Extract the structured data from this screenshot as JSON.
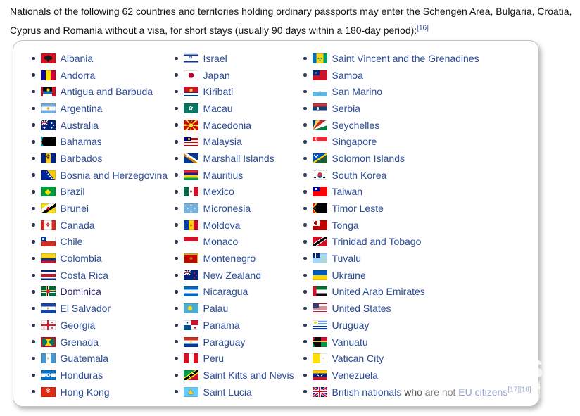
{
  "intro": {
    "line1": "Nationals of the following 62 countries and territories holding ordinary passports may enter the Schengen Area, Bulgaria, Croatia,",
    "line2": "Cyprus and Romania without a visa, for short stays (usually 90 days within a 180-day period):",
    "ref": "[16]"
  },
  "colors": {
    "link": "#2b4c98",
    "visited_link": "#2b2171",
    "text": "#141414",
    "box_border": "#c2c2c2",
    "bullet": "#2a3756"
  },
  "watermark": {
    "s": "S",
    "g": "G",
    "four": "4"
  },
  "box": {
    "columns": [
      [
        {
          "label": "Albania",
          "flag": "radial-gradient(ellipse 6px 3px at 50% 46%,#191919 98%,transparent),radial-gradient(ellipse 2px 5px at 50% 52%,#191919 98%,transparent),linear-gradient(#d8121f,#d8121f)"
        },
        {
          "label": "Andorra",
          "flag": "linear-gradient(90deg,#10069f 0 33%,#fedd00 33% 67%,#d50032 67%)"
        },
        {
          "label": "Antigua and Barbuda",
          "flag": "radial-gradient(circle 2.2px at 50% 4.5px,#fcd116 98%,transparent),linear-gradient(180deg,#000 0 45%,#0072c6 45% 70%,#fff 70%) 50% 0/62% 100% no-repeat,linear-gradient(#ce1126,#ce1126)"
        },
        {
          "label": "Argentina",
          "flag": "radial-gradient(circle 1.8px at 50% 50%,#f6b40e 98%,transparent),linear-gradient(180deg,#74acdf 0 33%,#fff 33% 67%,#74acdf 67%)"
        },
        {
          "label": "Australia",
          "flag": "radial-gradient(circle 1px at 15.5px 4px,#fff 97%,transparent),radial-gradient(circle 1px at 18px 7px,#fff 97%,transparent),radial-gradient(circle 1px at 15.5px 10.5px,#fff 97%,transparent),radial-gradient(circle 1.4px at 5px 10.5px,#fff 97%,transparent),linear-gradient(#c8102e,#c8102e) 0 3.2px/10px 0.8px no-repeat,linear-gradient(#c8102e,#c8102e) 4.6px 0/0.8px 7px no-repeat,linear-gradient(#fff,#fff) 0 2.7px/10px 1.8px no-repeat,linear-gradient(#fff,#fff) 4.1px 0/1.8px 7px no-repeat,linear-gradient(34deg,transparent 44%,#fff 44% 56%,transparent 56%) 0 0/10px 7px no-repeat,linear-gradient(-34deg,transparent 44%,#fff 44% 56%,transparent 56%) 0 0/10px 7px no-repeat,linear-gradient(#00247d,#00247d)"
        },
        {
          "label": "Bahamas",
          "flag": "conic-gradient(from 30deg at 0 50%,#000 0 120deg,transparent 120deg),linear-gradient(180deg,#00abc9 0 33%,#fae042 33% 67%,#00abc9 67%)"
        },
        {
          "label": "Barbados",
          "flag": "linear-gradient(90deg,#00267f 0 33%,#ffc726 33% 67%,#00267f 67%)",
          "ch": {
            "t": "♆",
            "c": "#000",
            "s": 9
          }
        },
        {
          "label": "Bosnia and Herzegovina",
          "flag": "radial-gradient(circle 1px at 8px 2.5px,#fff 96%,transparent),radial-gradient(circle 1px at 10.5px 5.5px,#fff 96%,transparent),radial-gradient(circle 1px at 13px 8.5px,#fff 96%,transparent),radial-gradient(circle 1px at 15.5px 11.5px,#fff 96%,transparent),conic-gradient(from 90deg at 9px 0,#fecb00 0 52deg,transparent 52deg),linear-gradient(#002395,#002395)"
        },
        {
          "label": "Brazil",
          "flag": "linear-gradient(#009b3a,#009b3a)",
          "ch": {
            "t": "◆",
            "c": "#fedf00",
            "s": 11
          }
        },
        {
          "label": "Brunei",
          "flag": "radial-gradient(circle 2px at 10.5px 7px,#cf1126 98%,transparent),linear-gradient(to bottom right,transparent 30%,#fff 30% 50%,#000 50% 66%,transparent 66%),linear-gradient(#f7e017,#f7e017)"
        },
        {
          "label": "Canada",
          "flag": "linear-gradient(90deg,#d52b1e 0 25%,transparent 25% 75%,#d52b1e 75%),linear-gradient(#fff,#fff)",
          "ch": {
            "t": "❖",
            "c": "#d52b1e",
            "s": 8
          }
        },
        {
          "label": "Chile",
          "flag": "radial-gradient(circle 1.6px at 3.5px 3.5px,#fff 98%,transparent),linear-gradient(#0039a6,#0039a6) 0 0/7px 7px no-repeat,linear-gradient(180deg,#fff 0 50%,#d52b1e 50%)"
        },
        {
          "label": "Colombia",
          "flag": "linear-gradient(180deg,#fcd116 0 50%,#003893 50% 75%,#ce1126 75%)"
        },
        {
          "label": "Costa Rica",
          "flag": "linear-gradient(180deg,#002b7f 0 18%,#fff 18% 36%,#ce1126 36% 64%,#fff 64% 82%,#002b7f 82%)"
        },
        {
          "label": "Dominica",
          "visited": true,
          "flag": "radial-gradient(circle 2.6px at 50% 50%,#d41c30 98%,transparent),linear-gradient(#fcd116,#fcd116) 0 4.6px/21px 1.3px no-repeat,linear-gradient(#0a0a0a,#0a0a0a) 0 5.9px/21px 1.3px no-repeat,linear-gradient(#fff,#fff) 0 7.2px/21px 1.3px no-repeat,linear-gradient(#fcd116,#fcd116) 8px 0/1.3px 14px no-repeat,linear-gradient(#0a0a0a,#0a0a0a) 9.3px 0/1.3px 14px no-repeat,linear-gradient(#fff,#fff) 10.6px 0/1.3px 14px no-repeat,linear-gradient(#006b3f,#006b3f)"
        },
        {
          "label": "El Salvador",
          "flag": "radial-gradient(circle 1.7px at 50% 50%,#e8a33d 98%,transparent),linear-gradient(180deg,#0f47af 0 33%,#fff 33% 67%,#0f47af 67%)"
        },
        {
          "label": "Georgia",
          "flag": "linear-gradient(#e8112d,#e8112d) 0 5.9px/21px 2.2px no-repeat,linear-gradient(#e8112d,#e8112d) 9.4px 0/2.2px 14px no-repeat,radial-gradient(circle 1px at 4.5px 3px,#e8112d 96%,transparent),radial-gradient(circle 1px at 16px 3px,#e8112d 96%,transparent),radial-gradient(circle 1px at 4.5px 11px,#e8112d 96%,transparent),radial-gradient(circle 1px at 16px 11px,#e8112d 96%,transparent),linear-gradient(#fff,#fff)"
        },
        {
          "label": "Grenada",
          "flag": "radial-gradient(circle 1.7px at 50% 50%,#fcd116 98%,transparent),conic-gradient(from -45deg at 50% 50%,#fcd116 0 90deg,#007a5e 90deg 180deg,#fcd116 180deg 270deg,#007a5e 270deg) 2px 2px/17px 10px no-repeat,linear-gradient(#ce1126,#ce1126)"
        },
        {
          "label": "Guatemala",
          "flag": "radial-gradient(circle 1.6px at 50% 50%,#b5c9ad 98%,transparent),linear-gradient(90deg,#4997d0 0 33%,#fff 33% 67%,#4997d0 67%)"
        },
        {
          "label": "Honduras",
          "flag": "radial-gradient(circle 0.9px at 10.5px 7px,#0073cf 95%,transparent),radial-gradient(circle 0.9px at 7.5px 5.5px,#0073cf 95%,transparent),radial-gradient(circle 0.9px at 13.5px 5.5px,#0073cf 95%,transparent),radial-gradient(circle 0.9px at 7.5px 8.5px,#0073cf 95%,transparent),radial-gradient(circle 0.9px at 13.5px 8.5px,#0073cf 95%,transparent),linear-gradient(180deg,#0073cf 0 33%,#fff 33% 67%,#0073cf 67%)"
        },
        {
          "label": "Hong Kong",
          "flag": "linear-gradient(#de2910,#de2910)",
          "ch": {
            "t": "✻",
            "c": "#fff",
            "s": 9
          }
        }
      ],
      [
        {
          "label": "Israel",
          "flag": "linear-gradient(180deg,transparent 0 12%,#0038b8 12% 23%,transparent 23% 77%,#0038b8 77% 88%,transparent 88%),linear-gradient(#fff,#fff)",
          "ch": {
            "t": "✡",
            "c": "#0038b8",
            "s": 7
          }
        },
        {
          "label": "Japan",
          "flag": "radial-gradient(circle 3.8px at 50% 50%,#bc002d 98%,transparent),linear-gradient(#fff,#fff)"
        },
        {
          "label": "Kiribati",
          "flag": "radial-gradient(circle 2.2px at 50% 5px,#fcd116 98%,transparent),linear-gradient(#fff,#fff) 0 8.6px/21px 1.1px no-repeat,linear-gradient(#fff,#fff) 0 11px/21px 1.1px no-repeat,linear-gradient(180deg,#ce1126 0 57%,#003f87 57%)"
        },
        {
          "label": "Macau",
          "flag": "linear-gradient(#067662,#067662)",
          "ch": {
            "t": "✿",
            "c": "#fff",
            "s": 8
          }
        },
        {
          "label": "Macedonia",
          "flag": "radial-gradient(circle 2.6px at 50% 50%,#f8e92e 98%,transparent),repeating-conic-gradient(from 10deg at 50% 50%,#d20000 0 29deg,#f8e92e 29deg 45deg)"
        },
        {
          "label": "Malaysia",
          "flag": "radial-gradient(circle 1.6px at 7.5px 3.5px,#ffcc00 98%,transparent),linear-gradient(#010066,#010066) 0 0/10.5px 7px no-repeat,repeating-linear-gradient(180deg,#cc0001 0 1px,#fff 1px 2px)"
        },
        {
          "label": "Marshall Islands",
          "flag": "radial-gradient(circle 1.8px at 5px 3.5px,#fff 98%,transparent),linear-gradient(to top right,transparent 38%,#dd7500 38% 50%,#fff 50% 62%,transparent 62%),linear-gradient(#003893,#003893)"
        },
        {
          "label": "Mauritius",
          "flag": "linear-gradient(180deg,#ea2839 0 25%,#1a206d 25% 50%,#ffd500 50% 75%,#00a551 75%)"
        },
        {
          "label": "Mexico",
          "flag": "radial-gradient(circle 1.7px at 50% 50%,#8c6239 98%,transparent),linear-gradient(90deg,#006847 0 33%,#fff 33% 67%,#ce1126 67%)"
        },
        {
          "label": "Micronesia",
          "flag": "radial-gradient(circle 1px at 10.5px 2.5px,#fff 96%,transparent),radial-gradient(circle 1px at 10.5px 11.5px,#fff 96%,transparent),radial-gradient(circle 1px at 5.5px 7px,#fff 96%,transparent),radial-gradient(circle 1px at 15.5px 7px,#fff 96%,transparent),linear-gradient(#75b2dd,#75b2dd)"
        },
        {
          "label": "Moldova",
          "flag": "radial-gradient(circle 1.7px at 50% 50%,#a77b3b 98%,transparent),linear-gradient(90deg,#0046ae 0 33%,#ffd200 33% 67%,#cc092f 67%)"
        },
        {
          "label": "Monaco",
          "flag": "linear-gradient(180deg,#ce1126 0 50%,#fff 50%)"
        },
        {
          "label": "Montenegro",
          "flag": "radial-gradient(circle 2px at 50% 50%,#b8860b 98%,transparent),linear-gradient(#c40308,#c40308) 1.5px 1.5px/18px 11px no-repeat,linear-gradient(#d3ae3b,#d3ae3b)"
        },
        {
          "label": "New Zealand",
          "flag": "radial-gradient(circle 1.1px at 15px 4px,#cc142b 97%,transparent),radial-gradient(circle 1.1px at 18px 7px,#cc142b 97%,transparent),radial-gradient(circle 1.1px at 15px 10.5px,#cc142b 97%,transparent),linear-gradient(#c8102e,#c8102e) 0 3.2px/10px 0.8px no-repeat,linear-gradient(#c8102e,#c8102e) 4.6px 0/0.8px 7px no-repeat,linear-gradient(#fff,#fff) 0 2.7px/10px 1.8px no-repeat,linear-gradient(#fff,#fff) 4.1px 0/1.8px 7px no-repeat,linear-gradient(34deg,transparent 44%,#fff 44% 56%,transparent 56%) 0 0/10px 7px no-repeat,linear-gradient(-34deg,transparent 44%,#fff 44% 56%,transparent 56%) 0 0/10px 7px no-repeat,linear-gradient(#00247d,#00247d)"
        },
        {
          "label": "Nicaragua",
          "flag": "radial-gradient(circle 1.5px at 50% 50%,#ffd700 70%,transparent 71%),linear-gradient(180deg,#0067c6 0 33%,#fff 33% 67%,#0067c6 67%)"
        },
        {
          "label": "Palau",
          "flag": "radial-gradient(circle 3.1px at 9px 7px,#ffde00 98%,transparent),linear-gradient(#4aadd6,#4aadd6)"
        },
        {
          "label": "Panama",
          "flag": "radial-gradient(circle 1.3px at 5px 3.5px,#005293 97%,transparent),radial-gradient(circle 1.3px at 16px 10.5px,#d21034 97%,transparent),conic-gradient(at 50% 50%,#d21034 0 90deg,#fff 90deg 180deg,#005293 180deg 270deg,#fff 270deg)"
        },
        {
          "label": "Paraguay",
          "flag": "radial-gradient(circle 1.4px at 50% 50%,#ffd700 98%,transparent),linear-gradient(180deg,#d52b1e 0 33%,#fff 33% 67%,#0038a8 67%)"
        },
        {
          "label": "Peru",
          "flag": "linear-gradient(90deg,#d91023 0 33%,#fff 33% 67%,#d91023 67%)"
        },
        {
          "label": "Saint Kitts and Nevis",
          "flag": "radial-gradient(circle 1.2px at 8px 9px,#fff 97%,transparent),radial-gradient(circle 1.2px at 13px 5px,#fff 97%,transparent),linear-gradient(to bottom right,#009e49 0 38%,#ffe900 38% 44%,#000 44% 58%,#ffe900 58% 64%,#ce1126 64%)"
        },
        {
          "label": "Saint Lucia",
          "flag": "linear-gradient(#66ccff,#66ccff)",
          "ch": {
            "t": "▲",
            "c": "#fcd116",
            "s": 10,
            "sh": "0 0 1px #000"
          }
        }
      ],
      [
        {
          "label": "Saint Vincent and the Grenadines",
          "flag": "radial-gradient(circle 1.1px at 8.5px 7px,#009e60 97%,transparent),radial-gradient(circle 1.1px at 12.5px 7px,#009e60 97%,transparent),radial-gradient(circle 1.1px at 10.5px 9.8px,#009e60 97%,transparent),linear-gradient(90deg,#0072c6 0 27%,#fcd116 27% 73%,#009e60 73%)"
        },
        {
          "label": "Samoa",
          "flag": "radial-gradient(circle 1px at 5px 3.5px,#fff 96%,transparent),linear-gradient(#002b7f,#002b7f) 0 0/10px 7px no-repeat,linear-gradient(#ce1126,#ce1126)"
        },
        {
          "label": "San Marino",
          "flag": "radial-gradient(circle 1.8px at 50% 50%,#e7a94e 55%,#65c8d0 56%,transparent 60%),linear-gradient(180deg,#fff 0 50%,#5eb6e4 50%)"
        },
        {
          "label": "Serbia",
          "flag": "radial-gradient(ellipse 1.6px 2.2px at 7.5px 7px,#f0f0f0 96%,transparent),linear-gradient(180deg,#c6363c 0 33%,#0c4076 33% 67%,#fff 67%)"
        },
        {
          "label": "Seychelles",
          "flag": "conic-gradient(from 0deg at 0 100%,#003f87 0 18deg,#fcd856 18deg 36deg,#d62828 36deg 54deg,#fff 54deg 72deg,#007a3d 72deg 90deg)"
        },
        {
          "label": "Singapore",
          "flag": "radial-gradient(circle 1.7px at 6.8px 3.5px,#ed2939 98%,transparent),radial-gradient(circle 2.1px at 5.8px 3.5px,#fff 98%,transparent),linear-gradient(180deg,#ed2939 0 50%,#fff 50%)"
        },
        {
          "label": "Solomon Islands",
          "flag": "radial-gradient(circle 1px at 3px 2.5px,#fff 96%,transparent),radial-gradient(circle 1px at 7px 2.5px,#fff 96%,transparent),radial-gradient(circle 1px at 5px 4.8px,#fff 96%,transparent),linear-gradient(to bottom right,#0051ba 0 45%,#fcd116 45% 55%,#215b33 55%)"
        },
        {
          "label": "South Korea",
          "flag": "linear-gradient(#1a1a1a,#1a1a1a) 2.5px 2.5px/3px 1px no-repeat,linear-gradient(#1a1a1a,#1a1a1a) 15.5px 2.5px/3px 1px no-repeat,linear-gradient(#1a1a1a,#1a1a1a) 2.5px 10.5px/3px 1px no-repeat,linear-gradient(#1a1a1a,#1a1a1a) 15.5px 10.5px/3px 1px no-repeat,radial-gradient(circle 3px at 10.5px 6px,#cd2e3a 98%,transparent),radial-gradient(circle 3px at 10.5px 8px,#0047a0 98%,transparent),linear-gradient(#fff,#fff)"
        },
        {
          "label": "Taiwan",
          "flag": "radial-gradient(circle 1.6px at 5.2px 3.5px,#fff 98%,transparent),linear-gradient(#000095,#000095) 0 0/10.5px 7px no-repeat,linear-gradient(#fe0000,#fe0000)"
        },
        {
          "label": "Timor Leste",
          "flag": "radial-gradient(circle 1px at 3.5px 7px,#fff 96%,transparent),conic-gradient(from 45deg at 0 50%,#000 0 90deg,transparent 90deg),conic-gradient(from 30deg at 0 50%,#ffc726 0 120deg,transparent 120deg),linear-gradient(#dc241f,#dc241f)"
        },
        {
          "label": "Tonga",
          "flag": "linear-gradient(#c10000,#c10000) 4px 1.5px/2px 5px no-repeat,linear-gradient(#c10000,#c10000) 2.5px 3px/5px 2px no-repeat,linear-gradient(#fff,#fff) 0 0/10px 8px no-repeat,linear-gradient(#c10000,#c10000)"
        },
        {
          "label": "Trinidad and Tobago",
          "flag": "linear-gradient(to bottom right,#ce1126 0 38%,#fff 38% 43%,#000 43% 57%,#fff 57% 62%,#ce1126 62%)"
        },
        {
          "label": "Tuvalu",
          "flag": "radial-gradient(circle 1px at 13px 11px,#ffce00 96%,transparent),radial-gradient(circle 1px at 16.5px 8.5px,#ffce00 96%,transparent),radial-gradient(circle 1px at 18px 12px,#ffce00 96%,transparent),radial-gradient(circle 1px at 15px 5px,#ffce00 96%,transparent),linear-gradient(#fff,#fff) 0 3px/10px 1.1px no-repeat,linear-gradient(#fff,#fff) 4.5px 0/1.1px 7px no-repeat,linear-gradient(#00247d,#00247d) 0 0/10px 7px no-repeat,linear-gradient(#9fd9ff,#9fd9ff)"
        },
        {
          "label": "Ukraine",
          "flag": "linear-gradient(180deg,#005bbb 0 50%,#ffd500 50%)"
        },
        {
          "label": "United Arab Emirates",
          "flag": "linear-gradient(90deg,#ce1126 0 27%,transparent 27%),linear-gradient(180deg,#00732f 0 33%,#fff 33% 67%,#0a0a0a 67%)"
        },
        {
          "label": "United States",
          "flag": "linear-gradient(#3c3b6e,#3c3b6e) 0 0/9px 7.5px no-repeat,repeating-linear-gradient(180deg,#b22234 0 1.08px,#fff 1.08px 2.16px)"
        },
        {
          "label": "Uruguay",
          "flag": "radial-gradient(circle 1.8px at 4px 3.5px,#fcd116 98%,transparent),linear-gradient(#fff,#fff) 0 0/8px 7px no-repeat,repeating-linear-gradient(180deg,#fff 0 1.56px,#0038a8 1.56px 3.12px)"
        },
        {
          "label": "Vanuatu",
          "flag": "linear-gradient(#fdce12,#fdce12) 0 6.4px/21px 1.2px no-repeat,conic-gradient(from 30deg at 0 50%,#0a0a0a 0 120deg,transparent 120deg) 0 0/12px 14px no-repeat,linear-gradient(180deg,#d21034 0 50%,#009543 50%)"
        },
        {
          "label": "Vatican City",
          "flag": "radial-gradient(circle 2px at 15.5px 7px,#d9d9d9 55%,#f0c75e 56%,transparent 62%),linear-gradient(90deg,#ffe000 0 50%,#fff 50%)"
        },
        {
          "label": "Venezuela",
          "flag": "radial-gradient(circle 0.8px at 7px 6px,#fff 95%,transparent),radial-gradient(circle 0.8px at 10.5px 5.2px,#fff 95%,transparent),radial-gradient(circle 0.8px at 14px 6px,#fff 95%,transparent),radial-gradient(circle 0.8px at 8.3px 7.6px,#fff 95%,transparent),radial-gradient(circle 0.8px at 12.7px 7.6px,#fff 95%,transparent),linear-gradient(180deg,#ffcc00 0 33%,#00247d 33% 67%,#cf142b 67%)"
        },
        {
          "label": "British nationals who are not EU citizens",
          "sup": "[17][18]",
          "parts": [
            {
              "t": "British nationals",
              "link": true
            },
            {
              "t": " who are not ",
              "link": false
            },
            {
              "t": "EU citizens",
              "link": true
            }
          ],
          "flag": "linear-gradient(#c8102e,#c8102e) 0 5.8px/21px 2.4px no-repeat,linear-gradient(#c8102e,#c8102e) 9.3px 0/2.4px 14px no-repeat,linear-gradient(#fff,#fff) 0 4.8px/21px 4.4px no-repeat,linear-gradient(#fff,#fff) 8.3px 0/4.4px 14px no-repeat,linear-gradient(33.7deg,transparent 46%,#c8102e 46% 54%,transparent 54%),linear-gradient(-33.7deg,transparent 46%,#c8102e 46% 54%,transparent 54%),linear-gradient(33.7deg,transparent 42%,#fff 42% 58%,transparent 58%),linear-gradient(-33.7deg,transparent 42%,#fff 42% 58%,transparent 58%),linear-gradient(#00247d,#00247d)"
        }
      ]
    ]
  }
}
